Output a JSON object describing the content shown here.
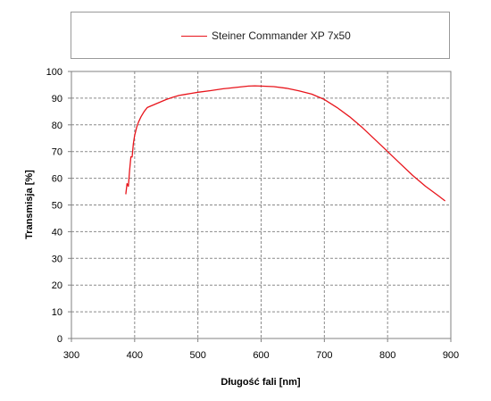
{
  "chart_data": {
    "type": "line",
    "title": "",
    "xlabel": "Długość fali [nm]",
    "ylabel": "Transmisja [%]",
    "xlim": [
      300,
      900
    ],
    "ylim": [
      0,
      100
    ],
    "xticks": [
      300,
      400,
      500,
      600,
      700,
      800,
      900
    ],
    "yticks": [
      0,
      10,
      20,
      30,
      40,
      50,
      60,
      70,
      80,
      90,
      100
    ],
    "grid": true,
    "legend_position": "top",
    "series": [
      {
        "name": "Steiner Commander XP 7x50",
        "color": "#e8141b",
        "x": [
          386,
          388,
          390,
          392,
          394,
          396,
          398,
          400,
          403,
          406,
          410,
          415,
          420,
          425,
          430,
          435,
          440,
          450,
          460,
          470,
          480,
          490,
          500,
          520,
          540,
          560,
          580,
          590,
          600,
          620,
          640,
          660,
          680,
          700,
          720,
          740,
          760,
          780,
          800,
          820,
          840,
          860,
          880,
          891
        ],
        "y": [
          54,
          58,
          57,
          63,
          68,
          68,
          73,
          76,
          79,
          81,
          83,
          85,
          86.5,
          87,
          87.5,
          88,
          88.5,
          89.5,
          90.3,
          91,
          91.4,
          91.8,
          92.2,
          92.8,
          93.5,
          94,
          94.5,
          94.6,
          94.5,
          94.3,
          93.7,
          92.7,
          91.5,
          89.5,
          86.5,
          83,
          79,
          74.5,
          70,
          65.5,
          61,
          57,
          53.5,
          51.5
        ]
      }
    ]
  }
}
